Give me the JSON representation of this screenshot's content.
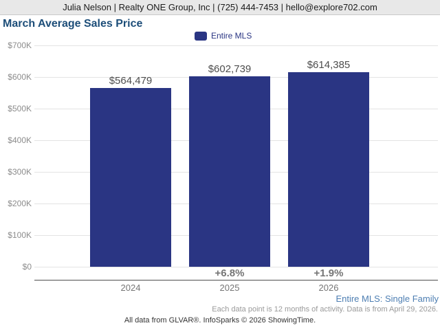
{
  "header": {
    "contact_line": "Julia Nelson | Realty ONE Group, Inc | (725) 444-7453 | hello@explore702.com"
  },
  "legend": {
    "label": "Entire MLS",
    "swatch_color": "#2a3583"
  },
  "chart_data": {
    "type": "bar",
    "title": "March Average Sales Price",
    "categories": [
      "2024",
      "2025",
      "2026"
    ],
    "series": [
      {
        "name": "Entire MLS",
        "values": [
          564479,
          602739,
          614385
        ]
      }
    ],
    "value_labels": [
      "$564,479",
      "$602,739",
      "$614,385"
    ],
    "pct_change_labels": [
      "",
      "+6.8%",
      "+1.9%"
    ],
    "xlabel": "",
    "ylabel": "",
    "ylim": [
      0,
      700000
    ],
    "y_ticks": [
      "$0",
      "$100K",
      "$200K",
      "$300K",
      "$400K",
      "$500K",
      "$600K",
      "$700K"
    ],
    "grid": true,
    "legend_position": "top",
    "bar_color": "#2a3583",
    "title_color": "#1d4e79"
  },
  "footnotes": {
    "series_link": "Entire MLS: Single Family",
    "data_note": "Each data point is 12 months of activity. Data is from April 29, 2026.",
    "attribution": "All data from GLVAR®. InfoSparks © 2026 ShowingTime."
  }
}
